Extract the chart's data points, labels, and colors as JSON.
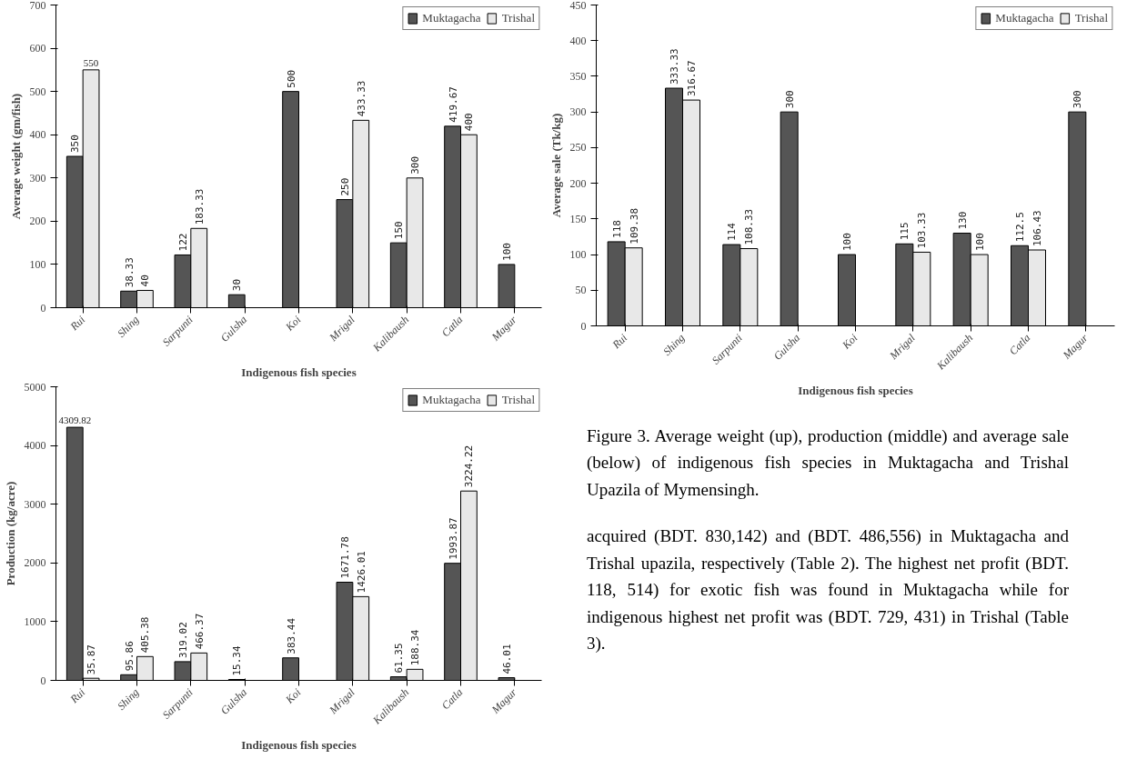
{
  "chart_data": [
    {
      "type": "bar",
      "xlabel": "Indigenous fish species",
      "ylabel": "Average weight (gm/fish)",
      "categories": [
        "Rui",
        "Shing",
        "Sarpunti",
        "Gulsha",
        "Koi",
        "Mrigal",
        "Kalibaush",
        "Catla",
        "Magur"
      ],
      "series": [
        {
          "name": "Muktagacha",
          "color": "#555555",
          "values": [
            350,
            38.33,
            122,
            30,
            500,
            250,
            150,
            419.67,
            100
          ]
        },
        {
          "name": "Trishal",
          "color": "#e8e8e8",
          "values": [
            550,
            40,
            183.33,
            null,
            null,
            433.33,
            300,
            400,
            null
          ]
        }
      ],
      "ylim": [
        0,
        700
      ],
      "yticks": [
        0,
        100,
        200,
        300,
        400,
        500,
        600,
        700
      ],
      "grid": false,
      "legend": "top right",
      "data_labels": true
    },
    {
      "type": "bar",
      "xlabel": "Indigenous fish species",
      "ylabel": "Average sale (Tk/kg)",
      "categories": [
        "Rui",
        "Shing",
        "Sarpunti",
        "Gulsha",
        "Koi",
        "Mrigal",
        "Kalibaush",
        "Catla",
        "Magur"
      ],
      "series": [
        {
          "name": "Muktagacha",
          "color": "#555555",
          "values": [
            118,
            333.33,
            114,
            300,
            100,
            115,
            130,
            112.5,
            300
          ]
        },
        {
          "name": "Trishal",
          "color": "#e8e8e8",
          "values": [
            109.38,
            316.67,
            108.33,
            null,
            null,
            103.33,
            100,
            106.43,
            null
          ]
        }
      ],
      "ylim": [
        0,
        450
      ],
      "yticks": [
        0,
        50,
        100,
        150,
        200,
        250,
        300,
        350,
        400,
        450
      ],
      "grid": false,
      "legend": "top right",
      "data_labels": true
    },
    {
      "type": "bar",
      "xlabel": "Indigenous fish species",
      "ylabel": "Production (kg/acre)",
      "categories": [
        "Rui",
        "Shing",
        "Sarpunti",
        "Gulsha",
        "Koi",
        "Mrigal",
        "Kalibaush",
        "Catla",
        "Magur"
      ],
      "series": [
        {
          "name": "Muktagacha",
          "color": "#555555",
          "values": [
            4309.82,
            95.86,
            319.02,
            15.34,
            383.44,
            1671.78,
            61.35,
            1993.87,
            46.01
          ]
        },
        {
          "name": "Trishal",
          "color": "#e8e8e8",
          "values": [
            35.87,
            405.38,
            466.37,
            null,
            null,
            1426.01,
            188.34,
            3224.22,
            null
          ]
        }
      ],
      "ylim": [
        0,
        5000
      ],
      "yticks": [
        0,
        1000,
        2000,
        3000,
        4000,
        5000
      ],
      "grid": false,
      "legend": "top right",
      "data_labels": true
    },
    {
      "type": "other",
      "annotations": [
        "Figure 3. Average weight (up), production (middle) and average sale (below) of indigenous fish species in Muktagacha and Trishal Upazila of Mymensingh.",
        "acquired (BDT. 830,142) and (BDT. 486,556) in Muktagacha and Trishal upazila, respectively (Table 2). The highest net profit (BDT. 118, 514) for exotic fish was found in Muktagacha while for indigenous highest net profit was (BDT. 729, 431) in Trishal (Table 3)."
      ]
    }
  ]
}
